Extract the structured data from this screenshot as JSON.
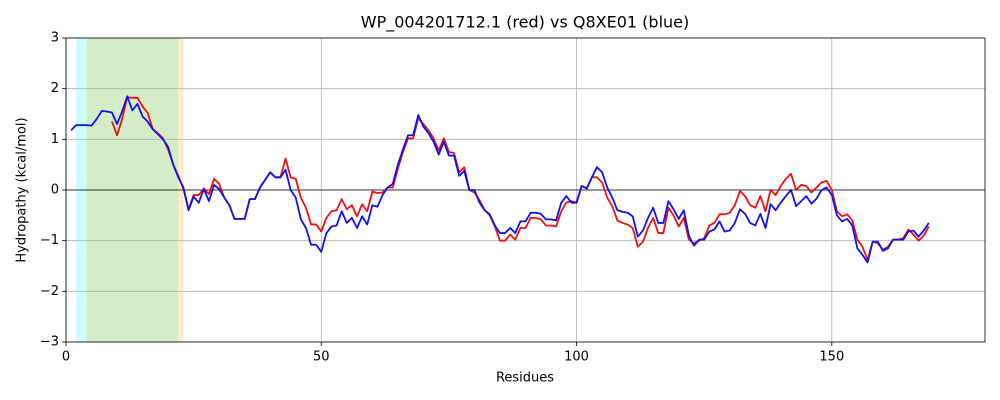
{
  "chart_data": {
    "type": "line",
    "title": "WP_004201712.1 (red) vs Q8XE01 (blue)",
    "x_label": "Residues",
    "y_label": "Hydropathy (kcal/mol)",
    "xlim": [
      0,
      180
    ],
    "ylim": [
      -3,
      3
    ],
    "xticks": [
      0,
      50,
      100,
      150
    ],
    "yticks": [
      {
        "value": -3,
        "label": "−3"
      },
      {
        "value": -2,
        "label": "−2"
      },
      {
        "value": -1,
        "label": "−1"
      },
      0,
      1,
      2,
      3
    ],
    "grid": true,
    "hline": 0,
    "spans": [
      {
        "start": 2,
        "end": 22,
        "color": "#00ffff"
      },
      {
        "start": 4,
        "end": 23,
        "color": "#ffb300"
      }
    ],
    "x": [
      1,
      2,
      3,
      4,
      5,
      6,
      7,
      8,
      9,
      10,
      11,
      12,
      13,
      14,
      15,
      16,
      17,
      18,
      19,
      20,
      21,
      22,
      23,
      24,
      25,
      26,
      27,
      28,
      29,
      30,
      31,
      32,
      33,
      34,
      35,
      36,
      37,
      38,
      39,
      40,
      41,
      42,
      43,
      44,
      45,
      46,
      47,
      48,
      49,
      50,
      51,
      52,
      53,
      54,
      55,
      56,
      57,
      58,
      59,
      60,
      61,
      62,
      63,
      64,
      65,
      66,
      67,
      68,
      69,
      70,
      71,
      72,
      73,
      74,
      75,
      76,
      77,
      78,
      79,
      80,
      81,
      82,
      83,
      84,
      85,
      86,
      87,
      88,
      89,
      90,
      91,
      92,
      93,
      94,
      95,
      96,
      97,
      98,
      99,
      100,
      101,
      102,
      103,
      104,
      105,
      106,
      107,
      108,
      109,
      110,
      111,
      112,
      113,
      114,
      115,
      116,
      117,
      118,
      119,
      120,
      121,
      122,
      123,
      124,
      125,
      126,
      127,
      128,
      129,
      130,
      131,
      132,
      133,
      134,
      135,
      136,
      137,
      138,
      139,
      140,
      141,
      142,
      143,
      144,
      145,
      146,
      147,
      148,
      149,
      150,
      151,
      152,
      153,
      154,
      155,
      156,
      157,
      158,
      159,
      160,
      161,
      162,
      163,
      164,
      165,
      166,
      167,
      168,
      169
    ],
    "series": [
      {
        "color": "#ee1111",
        "values": [
          null,
          null,
          null,
          null,
          null,
          null,
          null,
          null,
          1.35,
          1.08,
          1.4,
          1.83,
          1.82,
          1.82,
          1.65,
          1.52,
          1.2,
          1.12,
          1.02,
          0.8,
          0.5,
          0.28,
          0.02,
          -0.38,
          -0.1,
          -0.1,
          0.03,
          -0.08,
          0.22,
          0.12,
          -0.15,
          -0.3,
          -0.57,
          -0.57,
          -0.57,
          -0.18,
          -0.18,
          0.05,
          0.2,
          0.35,
          0.25,
          0.25,
          0.62,
          0.25,
          0.22,
          -0.15,
          -0.35,
          -0.68,
          -0.68,
          -0.82,
          -0.55,
          -0.42,
          -0.4,
          -0.18,
          -0.38,
          -0.3,
          -0.52,
          -0.28,
          -0.42,
          -0.03,
          -0.06,
          -0.05,
          0.05,
          0.05,
          0.42,
          0.75,
          1.02,
          1.02,
          1.42,
          1.3,
          1.18,
          1.02,
          0.78,
          1.02,
          0.75,
          0.73,
          0.35,
          0.45,
          0.0,
          -0.05,
          -0.2,
          -0.4,
          -0.5,
          -0.72,
          -1.0,
          -1.0,
          -0.88,
          -0.98,
          -0.75,
          -0.75,
          -0.55,
          -0.55,
          -0.58,
          -0.7,
          -0.7,
          -0.72,
          -0.42,
          -0.25,
          -0.22,
          -0.25,
          0.08,
          0.03,
          0.25,
          0.25,
          0.15,
          -0.15,
          -0.32,
          -0.6,
          -0.65,
          -0.68,
          -0.75,
          -1.12,
          -1.02,
          -0.75,
          -0.55,
          -0.85,
          -0.85,
          -0.35,
          -0.5,
          -0.72,
          -0.55,
          -0.98,
          -1.05,
          -1.0,
          -0.95,
          -0.7,
          -0.65,
          -0.48,
          -0.48,
          -0.45,
          -0.3,
          -0.02,
          -0.12,
          -0.3,
          -0.35,
          -0.12,
          -0.42,
          0.0,
          -0.1,
          0.08,
          0.22,
          0.32,
          0.0,
          0.1,
          0.08,
          -0.05,
          0.05,
          0.15,
          0.18,
          0.0,
          -0.42,
          -0.52,
          -0.48,
          -0.6,
          -0.98,
          -1.12,
          -1.38,
          -1.02,
          -1.05,
          -1.18,
          -1.12,
          -0.98,
          -0.98,
          -0.95,
          -0.78,
          -0.88,
          -1.0,
          -0.9,
          -0.72
        ]
      },
      {
        "color": "#1111ee",
        "values": [
          1.18,
          1.28,
          1.28,
          1.28,
          1.27,
          1.4,
          1.56,
          1.55,
          1.53,
          1.3,
          1.55,
          1.85,
          1.57,
          1.7,
          1.45,
          1.35,
          1.2,
          1.1,
          1.0,
          0.85,
          0.5,
          0.25,
          0.05,
          -0.4,
          -0.13,
          -0.25,
          0.02,
          -0.22,
          0.1,
          0.02,
          -0.15,
          -0.3,
          -0.57,
          -0.57,
          -0.57,
          -0.18,
          -0.18,
          0.05,
          0.2,
          0.35,
          0.25,
          0.25,
          0.4,
          0.0,
          -0.15,
          -0.58,
          -0.75,
          -1.08,
          -1.08,
          -1.22,
          -0.85,
          -0.72,
          -0.7,
          -0.42,
          -0.65,
          -0.55,
          -0.75,
          -0.52,
          -0.68,
          -0.3,
          -0.33,
          -0.1,
          0.05,
          0.12,
          0.5,
          0.8,
          1.08,
          1.08,
          1.48,
          1.25,
          1.12,
          0.95,
          0.7,
          0.95,
          0.68,
          0.68,
          0.28,
          0.38,
          0.0,
          0.0,
          -0.25,
          -0.4,
          -0.48,
          -0.7,
          -0.85,
          -0.85,
          -0.75,
          -0.85,
          -0.62,
          -0.62,
          -0.45,
          -0.45,
          -0.47,
          -0.58,
          -0.58,
          -0.6,
          -0.25,
          -0.12,
          -0.25,
          -0.25,
          0.08,
          0.03,
          0.25,
          0.45,
          0.35,
          0.05,
          -0.15,
          -0.4,
          -0.43,
          -0.45,
          -0.52,
          -0.92,
          -0.8,
          -0.55,
          -0.35,
          -0.65,
          -0.65,
          -0.22,
          -0.38,
          -0.57,
          -0.4,
          -0.9,
          -1.1,
          -0.98,
          -0.98,
          -0.82,
          -0.78,
          -0.62,
          -0.82,
          -0.8,
          -0.65,
          -0.38,
          -0.47,
          -0.65,
          -0.7,
          -0.47,
          -0.75,
          -0.28,
          -0.4,
          -0.25,
          -0.12,
          0.0,
          -0.32,
          -0.22,
          -0.12,
          -0.27,
          -0.17,
          0.0,
          0.05,
          -0.1,
          -0.5,
          -0.62,
          -0.57,
          -0.7,
          -1.15,
          -1.28,
          -1.43,
          -1.02,
          -1.02,
          -1.2,
          -1.15,
          -0.98,
          -0.98,
          -0.98,
          -0.82,
          -0.8,
          -0.92,
          -0.8,
          -0.65
        ]
      }
    ]
  }
}
